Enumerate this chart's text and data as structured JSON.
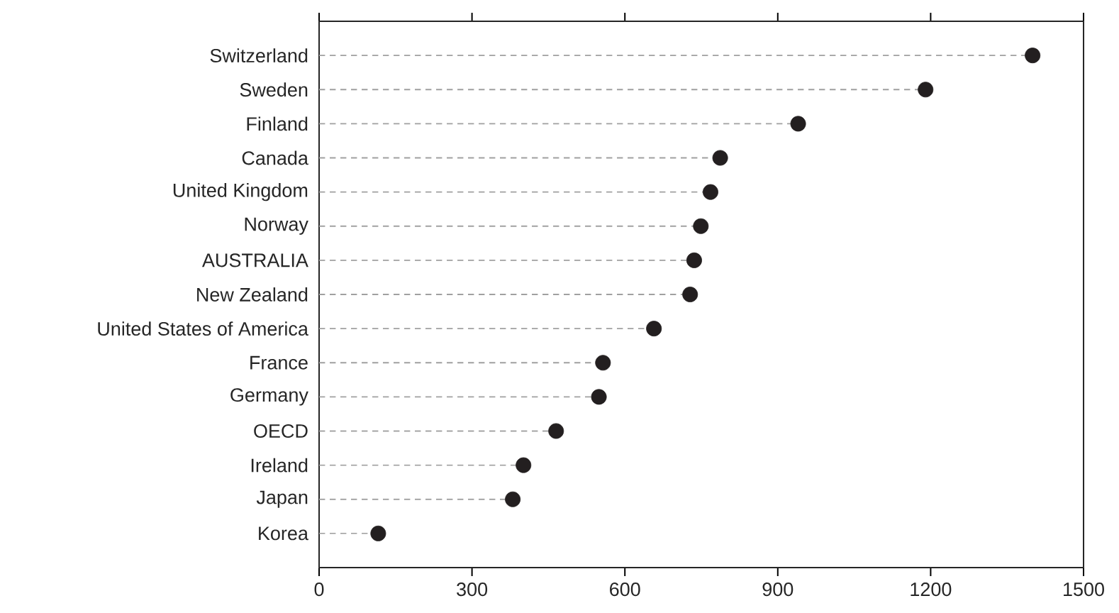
{
  "chart_data": {
    "type": "lollipop",
    "orientation": "horizontal",
    "categories": [
      "Switzerland",
      "Sweden",
      "Finland",
      "Canada",
      "United Kingdom",
      "Norway",
      "AUSTRALIA",
      "New Zealand",
      "United States of America",
      "France",
      "Germany",
      "OECD",
      "Ireland",
      "Japan",
      "Korea"
    ],
    "values": [
      1400,
      1190,
      940,
      787,
      768,
      749,
      736,
      728,
      657,
      557,
      549,
      465,
      401,
      380,
      116
    ],
    "color": "#231f20",
    "line_style": "dashed",
    "xlim": [
      0,
      1500
    ],
    "xticks": [
      0,
      300,
      600,
      900,
      1200,
      1500
    ],
    "grid": false
  }
}
